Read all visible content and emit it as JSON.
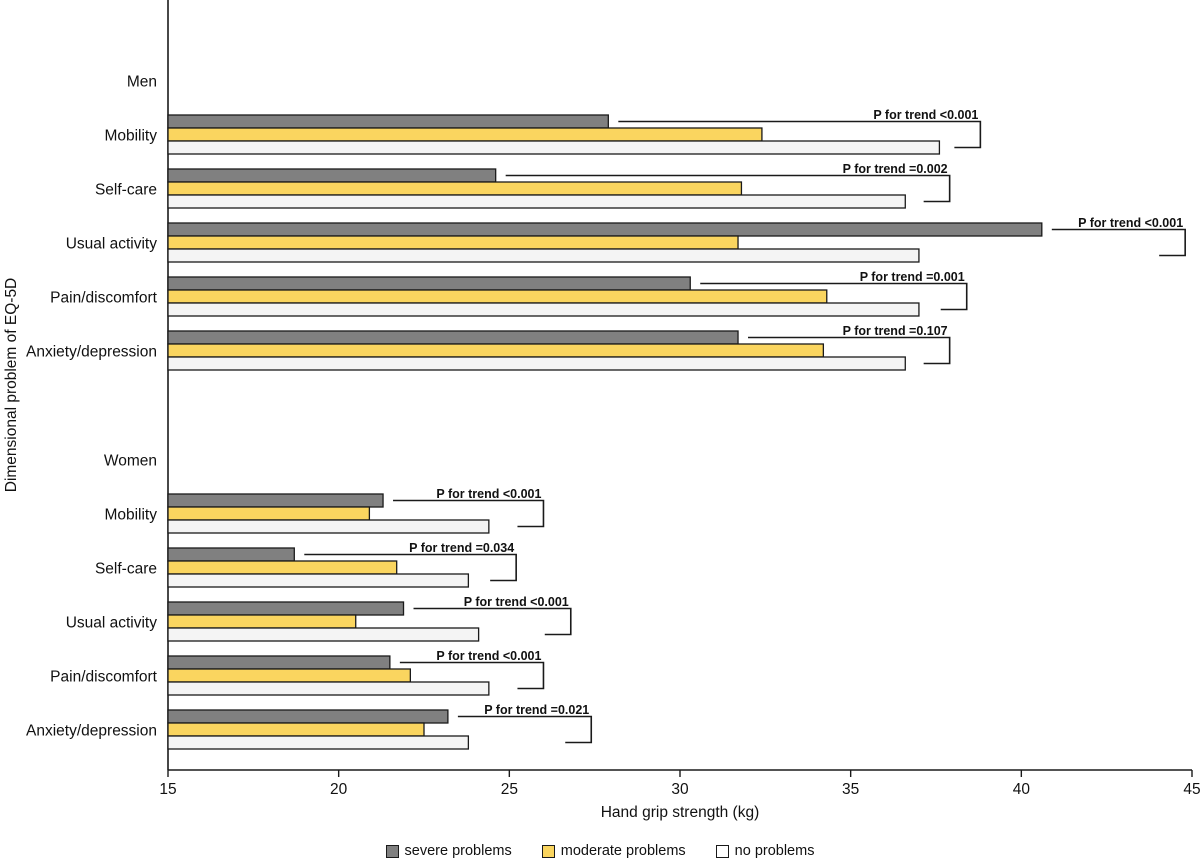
{
  "chart_data": {
    "type": "bar",
    "orientation": "horizontal",
    "title": "",
    "xlabel": "Hand grip strength (kg)",
    "ylabel": "Dimensional problem of EQ-5D",
    "xlim": [
      15,
      45
    ],
    "xticks": [
      15,
      20,
      25,
      30,
      35,
      40,
      45
    ],
    "grid": false,
    "legend_position": "bottom",
    "series": [
      "severe problems",
      "moderate problems",
      "no problems"
    ],
    "colors": {
      "severe": "#808080",
      "moderate": "#FAD55F",
      "no": "#F4F4F4"
    },
    "bar_border_color": "#1a1a1a",
    "sections": [
      {
        "label": "Men",
        "rows": [
          {
            "category": "Mobility",
            "values": {
              "severe": 27.9,
              "moderate": 32.4,
              "no": 37.6
            },
            "p_label": "P for trend <0.001",
            "bracket_end": 38.8
          },
          {
            "category": "Self-care",
            "values": {
              "severe": 24.6,
              "moderate": 31.8,
              "no": 36.6
            },
            "p_label": "P for trend =0.002",
            "bracket_end": 37.9
          },
          {
            "category": "Usual activity",
            "values": {
              "severe": 40.6,
              "moderate": 31.7,
              "no": 37.0
            },
            "p_label": "P for trend <0.001",
            "bracket_end": 44.8
          },
          {
            "category": "Pain/discomfort",
            "values": {
              "severe": 30.3,
              "moderate": 34.3,
              "no": 37.0
            },
            "p_label": "P for trend =0.001",
            "bracket_end": 38.4
          },
          {
            "category": "Anxiety/depression",
            "values": {
              "severe": 31.7,
              "moderate": 34.2,
              "no": 36.6
            },
            "p_label": "P for trend =0.107",
            "bracket_end": 37.9
          }
        ]
      },
      {
        "label": "Women",
        "rows": [
          {
            "category": "Mobility",
            "values": {
              "severe": 21.3,
              "moderate": 20.9,
              "no": 24.4
            },
            "p_label": "P for trend <0.001",
            "bracket_end": 26.0
          },
          {
            "category": "Self-care",
            "values": {
              "severe": 18.7,
              "moderate": 21.7,
              "no": 23.8
            },
            "p_label": "P for trend =0.034",
            "bracket_end": 25.2
          },
          {
            "category": "Usual activity",
            "values": {
              "severe": 21.9,
              "moderate": 20.5,
              "no": 24.1
            },
            "p_label": "P for trend <0.001",
            "bracket_end": 26.8
          },
          {
            "category": "Pain/discomfort",
            "values": {
              "severe": 21.5,
              "moderate": 22.1,
              "no": 24.4
            },
            "p_label": "P for trend <0.001",
            "bracket_end": 26.0
          },
          {
            "category": "Anxiety/depression",
            "values": {
              "severe": 23.2,
              "moderate": 22.5,
              "no": 23.8
            },
            "p_label": "P for trend =0.021",
            "bracket_end": 27.4
          }
        ]
      }
    ]
  },
  "legend": {
    "items": [
      {
        "label": "severe problems",
        "color": "#808080"
      },
      {
        "label": "moderate problems",
        "color": "#FAD55F"
      },
      {
        "label": "no problems",
        "color": "#FFFFFF"
      }
    ]
  }
}
